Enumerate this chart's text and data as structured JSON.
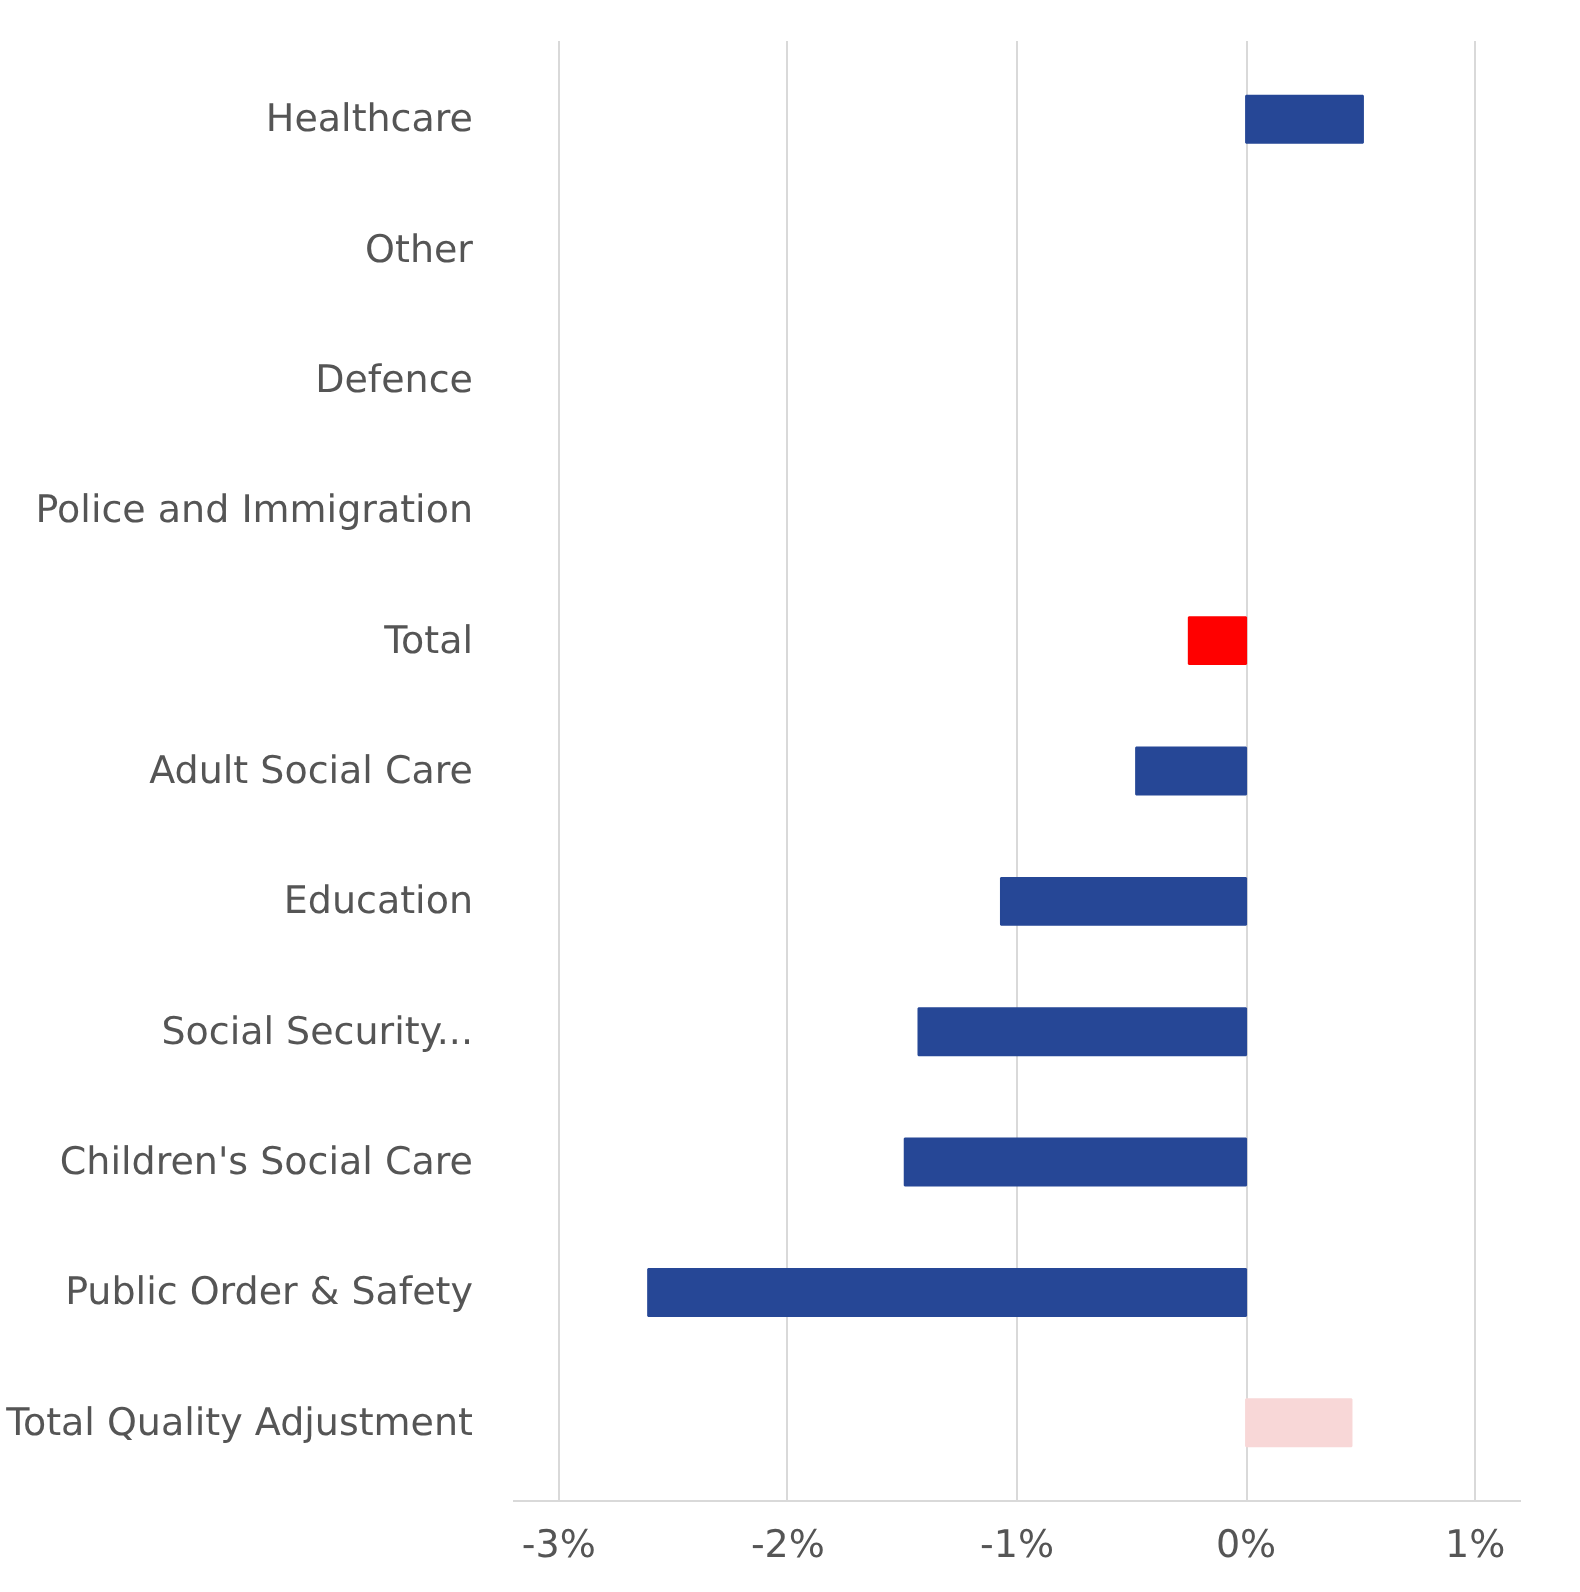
{
  "chart_data": {
    "type": "bar",
    "orientation": "horizontal",
    "categories": [
      "Healthcare",
      "Other",
      "Defence",
      "Police and Immigration",
      "Total",
      "Adult Social Care",
      "Education",
      "Social Security...",
      "Children's Social Care",
      "Public Order & Safety",
      "Total Quality Adjustment"
    ],
    "values": [
      0.51,
      null,
      null,
      null,
      -0.25,
      -0.48,
      -1.07,
      -1.43,
      -1.49,
      -2.61,
      0.46
    ],
    "colors": [
      "#264796",
      "#264796",
      "#264796",
      "#264796",
      "#ff0000",
      "#264796",
      "#264796",
      "#264796",
      "#264796",
      "#264796",
      "#f8d7d7"
    ],
    "xlim": [
      -3.2,
      1.2
    ],
    "xticks": [
      {
        "value": -3,
        "label": "-3%"
      },
      {
        "value": -2,
        "label": "-2%"
      },
      {
        "value": -1,
        "label": "-1%"
      },
      {
        "value": 0,
        "label": "0%"
      },
      {
        "value": 1,
        "label": "1%"
      }
    ],
    "grid": "x"
  }
}
